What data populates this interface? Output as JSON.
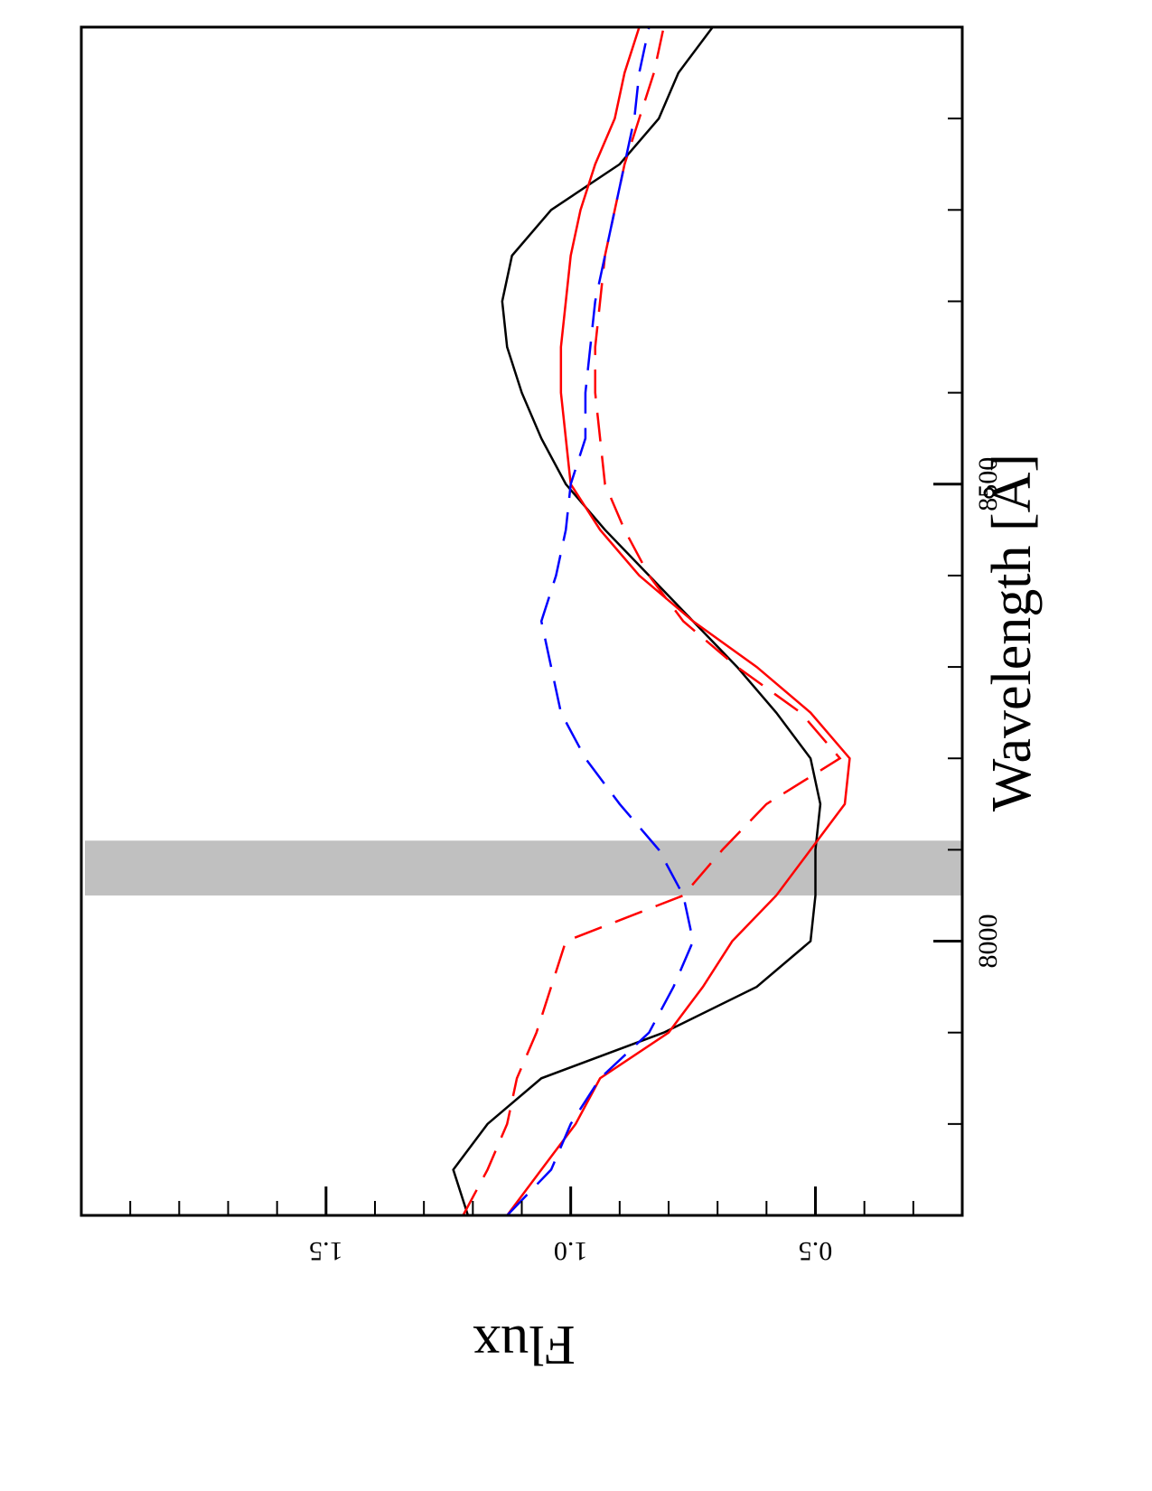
{
  "chart_data": {
    "type": "line",
    "xlabel": "Wavelength [Å]",
    "ylabel": "Flux",
    "x": [
      7700,
      7750,
      7800,
      7850,
      7900,
      7950,
      8000,
      8050,
      8100,
      8150,
      8200,
      8250,
      8300,
      8350,
      8400,
      8450,
      8500,
      8550,
      8600,
      8650,
      8700,
      8750,
      8800,
      8850,
      8900,
      8950,
      9000
    ],
    "series": [
      {
        "color": "#000000",
        "style": "solid",
        "values": [
          1.21,
          1.24,
          1.17,
          1.06,
          0.81,
          0.62,
          0.51,
          0.5,
          0.5,
          0.49,
          0.51,
          0.58,
          0.66,
          0.75,
          0.84,
          0.93,
          1.01,
          1.06,
          1.1,
          1.13,
          1.14,
          1.12,
          1.04,
          0.9,
          0.82,
          0.78,
          0.71
        ]
      },
      {
        "color": "#ff0000",
        "style": "solid",
        "values": [
          1.13,
          1.06,
          0.99,
          0.94,
          0.8,
          0.73,
          0.67,
          0.58,
          0.51,
          0.44,
          0.43,
          0.51,
          0.62,
          0.75,
          0.86,
          0.94,
          1.0,
          1.01,
          1.02,
          1.02,
          1.01,
          1.0,
          0.98,
          0.95,
          0.91,
          0.89,
          0.86
        ]
      },
      {
        "color": "#ff0000",
        "style": "dashed",
        "values": [
          1.22,
          1.17,
          1.13,
          1.11,
          1.07,
          1.04,
          1.01,
          0.77,
          0.69,
          0.6,
          0.45,
          0.53,
          0.66,
          0.77,
          0.84,
          0.89,
          0.93,
          0.94,
          0.95,
          0.95,
          0.94,
          0.93,
          0.91,
          0.89,
          0.86,
          0.83,
          0.81
        ]
      },
      {
        "color": "#0000ff",
        "style": "dashed",
        "values": [
          1.13,
          1.04,
          1.0,
          0.94,
          0.84,
          0.79,
          0.75,
          0.77,
          0.82,
          0.9,
          0.97,
          1.02,
          1.04,
          1.06,
          1.03,
          1.01,
          1.0,
          0.97,
          0.97,
          0.96,
          0.95,
          0.93,
          0.91,
          0.89,
          0.87,
          0.86,
          0.84
        ]
      }
    ],
    "xlim": [
      7700,
      9000
    ],
    "xticks": [
      8000,
      8500
    ],
    "xminor_ticks": [
      7800,
      7900,
      8100,
      8200,
      8300,
      8400,
      8600,
      8700,
      8800,
      8900
    ],
    "ylim": [
      0.2,
      2.0
    ],
    "yticks": [
      0.5,
      {
        "value": 1,
        "label": "1.0"
      },
      1.5
    ],
    "yminor_ticks": [
      0.3,
      0.4,
      0.6,
      0.7,
      0.8,
      0.9,
      1.1,
      1.2,
      1.3,
      1.4,
      1.6,
      1.7,
      1.8,
      1.9
    ],
    "highlight": {
      "range": [
        8050,
        8110
      ],
      "color": "#c0c0c0"
    }
  }
}
